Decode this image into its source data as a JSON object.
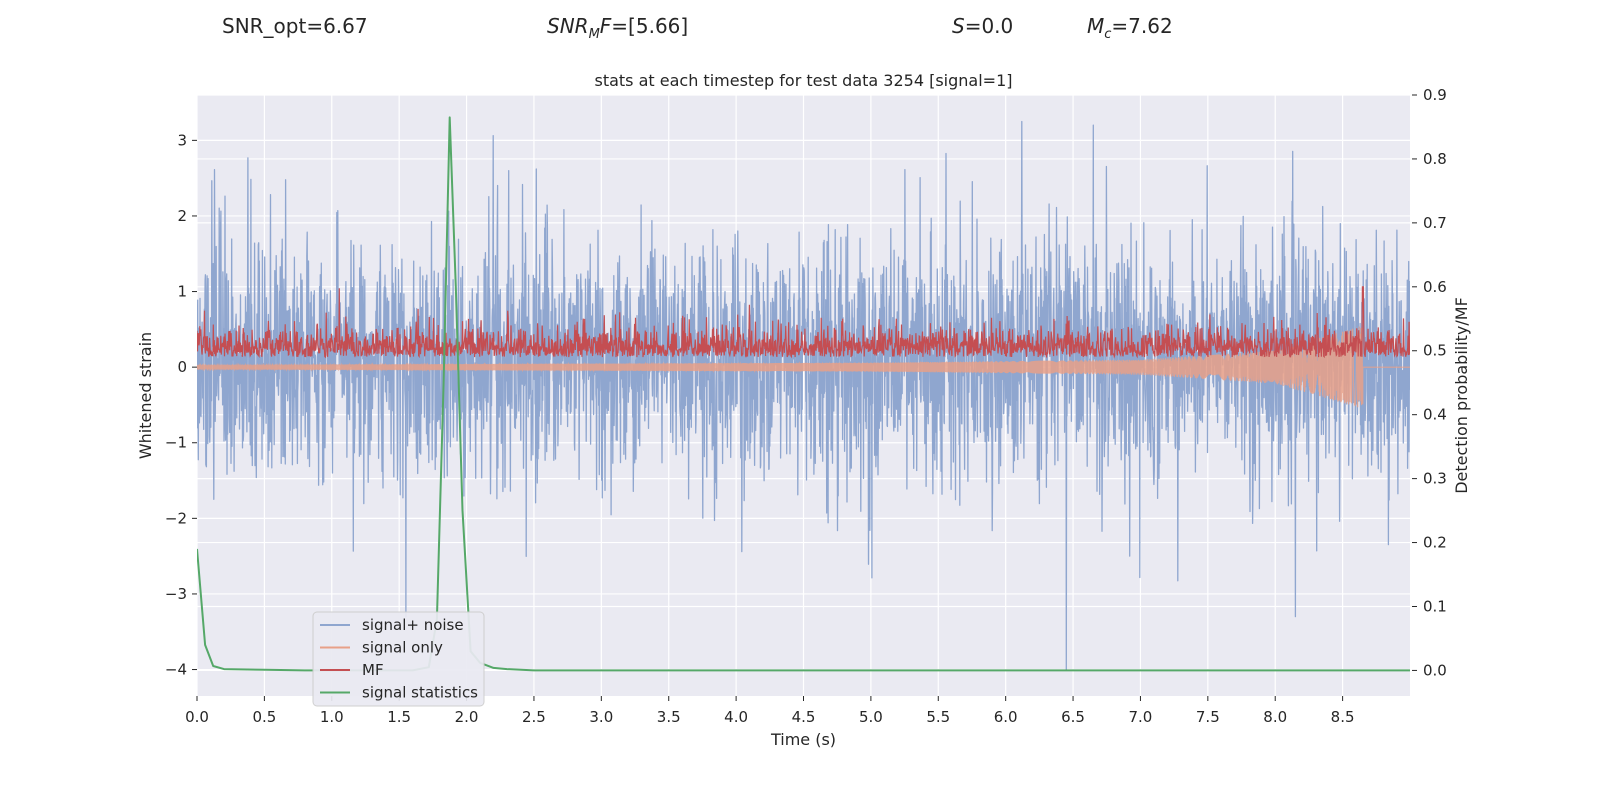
{
  "header": {
    "snr_opt": "SNR_opt=6.67",
    "snr_mf_sym": "SNR",
    "snr_mf_sub": "M",
    "snr_mf_sym2": "F",
    "snr_mf_value": "=[5.66]",
    "s_sym": "S",
    "s_value": "=0.0",
    "mc_sym": "M",
    "mc_sub": "c",
    "mc_value": "=7.62"
  },
  "chart_data": {
    "type": "line",
    "title": "stats at each timestep for test data 3254 [signal=1]",
    "xlabel": "Time (s)",
    "ylabel": "Whitened strain",
    "y2label": "Detection probability/MF",
    "xlim": [
      0.0,
      9.0
    ],
    "ylim": [
      -4.35,
      3.6
    ],
    "y2lim": [
      -0.04,
      0.9
    ],
    "xticks": [
      0.0,
      0.5,
      1.0,
      1.5,
      2.0,
      2.5,
      3.0,
      3.5,
      4.0,
      4.5,
      5.0,
      5.5,
      6.0,
      6.5,
      7.0,
      7.5,
      8.0,
      8.5
    ],
    "xtick_labels": [
      "0.0",
      "0.5",
      "1.0",
      "1.5",
      "2.0",
      "2.5",
      "3.0",
      "3.5",
      "4.0",
      "4.5",
      "5.0",
      "5.5",
      "6.0",
      "6.5",
      "7.0",
      "7.5",
      "8.0",
      "8.5"
    ],
    "yticks": [
      3,
      2,
      1,
      0,
      -1,
      -2,
      -3,
      -4
    ],
    "ytick_labels": [
      "3",
      "2",
      "1",
      "0",
      "−1",
      "−2",
      "−3",
      "−4"
    ],
    "y2ticks": [
      0.9,
      0.8,
      0.7,
      0.6,
      0.5,
      0.4,
      0.3,
      0.2,
      0.1,
      0.0
    ],
    "y2tick_labels": [
      "0.9",
      "0.8",
      "0.7",
      "0.6",
      "0.5",
      "0.4",
      "0.3",
      "0.2",
      "0.1",
      "0.0"
    ],
    "legend": {
      "position": "lower-left",
      "entries": [
        {
          "label": "signal+ noise",
          "color": "#8fa6cf"
        },
        {
          "label": "signal only",
          "color": "#e8a088"
        },
        {
          "label": "MF",
          "color": "#c44e52"
        },
        {
          "label": "signal statistics",
          "color": "#55a868"
        }
      ]
    },
    "series": [
      {
        "name": "signal+ noise",
        "axis": "left",
        "style": "dense noise",
        "x_range": [
          0.0,
          9.0
        ],
        "envelope_typical": [
          -1.6,
          1.9
        ],
        "notable_extremes": [
          {
            "x": 6.45,
            "y": -4.0
          },
          {
            "x": 6.12,
            "y": 3.25
          },
          {
            "x": 6.65,
            "y": 3.2
          },
          {
            "x": 8.15,
            "y": -3.3
          },
          {
            "x": 1.55,
            "y": -3.3
          }
        ]
      },
      {
        "name": "signal only",
        "axis": "left",
        "style": "chirp",
        "x_range": [
          0.0,
          8.65
        ],
        "amplitude_at_x": [
          [
            0.0,
            0.03
          ],
          [
            5.0,
            0.06
          ],
          [
            7.0,
            0.1
          ],
          [
            8.0,
            0.22
          ],
          [
            8.65,
            0.55
          ]
        ]
      },
      {
        "name": "MF",
        "axis": "right",
        "style": "dense noise",
        "x_range": [
          0.0,
          9.0
        ],
        "baseline": 0.49,
        "typical_peak": 0.56,
        "max_point": {
          "x": 8.65,
          "y": 0.6
        }
      },
      {
        "name": "signal statistics",
        "axis": "right",
        "x": [
          0.0,
          0.06,
          0.12,
          0.2,
          0.5,
          0.8,
          1.2,
          1.6,
          1.72,
          1.78,
          1.83,
          1.875,
          1.92,
          1.97,
          2.03,
          2.1,
          2.2,
          2.3,
          2.5,
          3.0,
          5.0,
          7.0,
          9.0
        ],
        "values": [
          0.19,
          0.04,
          0.007,
          0.002,
          0.001,
          0.0,
          0.0,
          0.0,
          0.005,
          0.08,
          0.45,
          0.865,
          0.6,
          0.25,
          0.03,
          0.012,
          0.004,
          0.002,
          0.0,
          0.0,
          0.0,
          0.0,
          0.0
        ]
      }
    ]
  }
}
